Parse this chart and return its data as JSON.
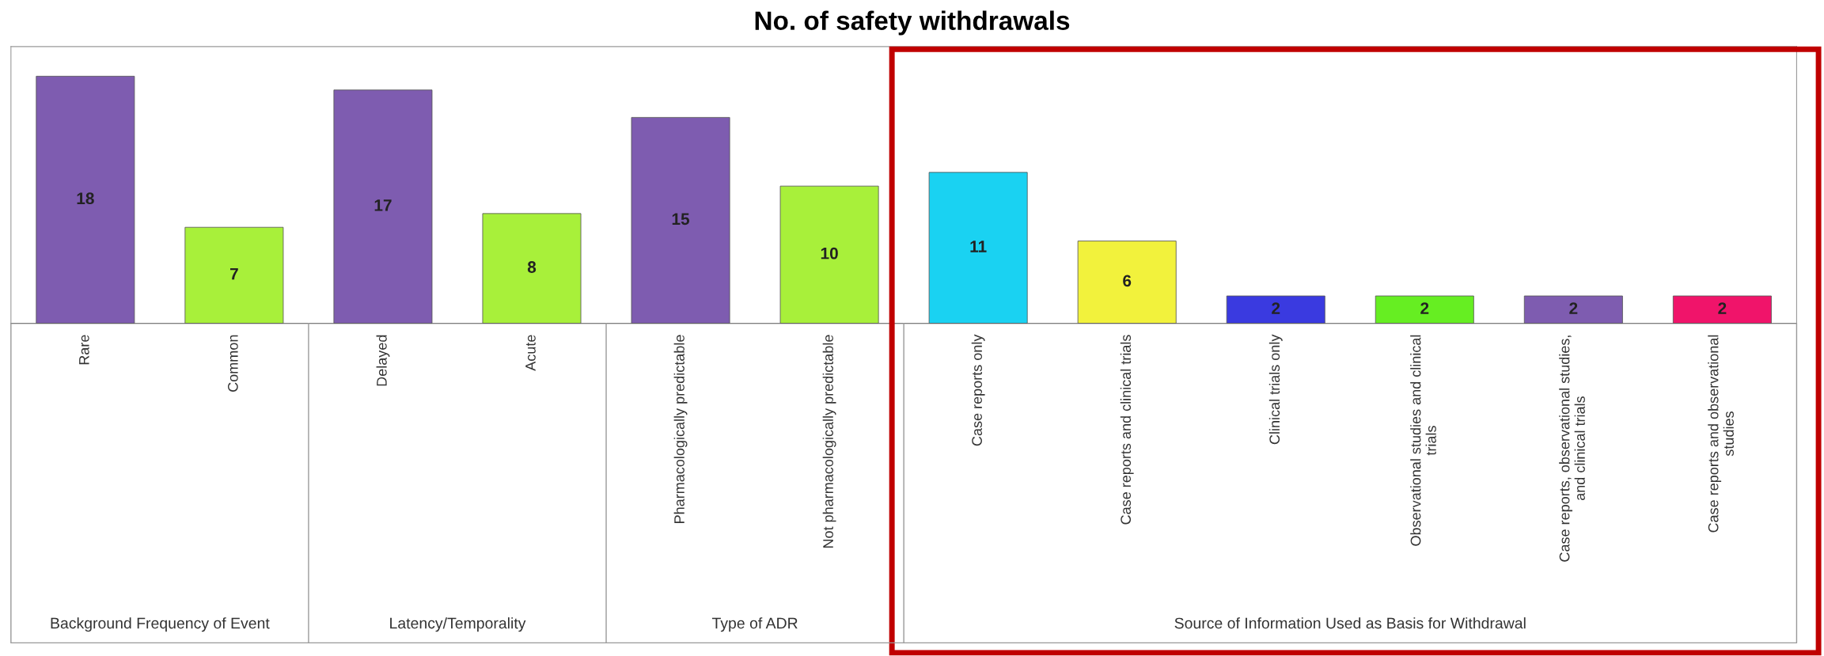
{
  "chart_data": {
    "type": "bar",
    "title": "No. of safety withdrawals",
    "categories": [
      "Rare",
      "Common",
      "Delayed",
      "Acute",
      "Pharmacologically predictable",
      "Not pharmacologically predictable",
      "Case reports only",
      "Case reports and clinical trials",
      "Clinical trials only",
      "Observational studies and clinical\ntrials",
      "Case reports, observational studies,\nand clinical trials",
      "Case reports and observational\nstudies"
    ],
    "values": [
      18,
      7,
      17,
      8,
      15,
      10,
      11,
      6,
      2,
      2,
      2,
      2
    ],
    "colors": [
      "#7e5cb0",
      "#a8f03a",
      "#7e5cb0",
      "#a8f03a",
      "#7e5cb0",
      "#a8f03a",
      "#1ad2f2",
      "#f2f23c",
      "#3a3ae0",
      "#66ee22",
      "#7e5cb0",
      "#f0146a"
    ],
    "data_labels": true,
    "annotations": [
      "Background Frequency of Event",
      "Latency/Temporality",
      "Type of ADR",
      "Source of Information Used as Basis for Withdrawal"
    ]
  }
}
